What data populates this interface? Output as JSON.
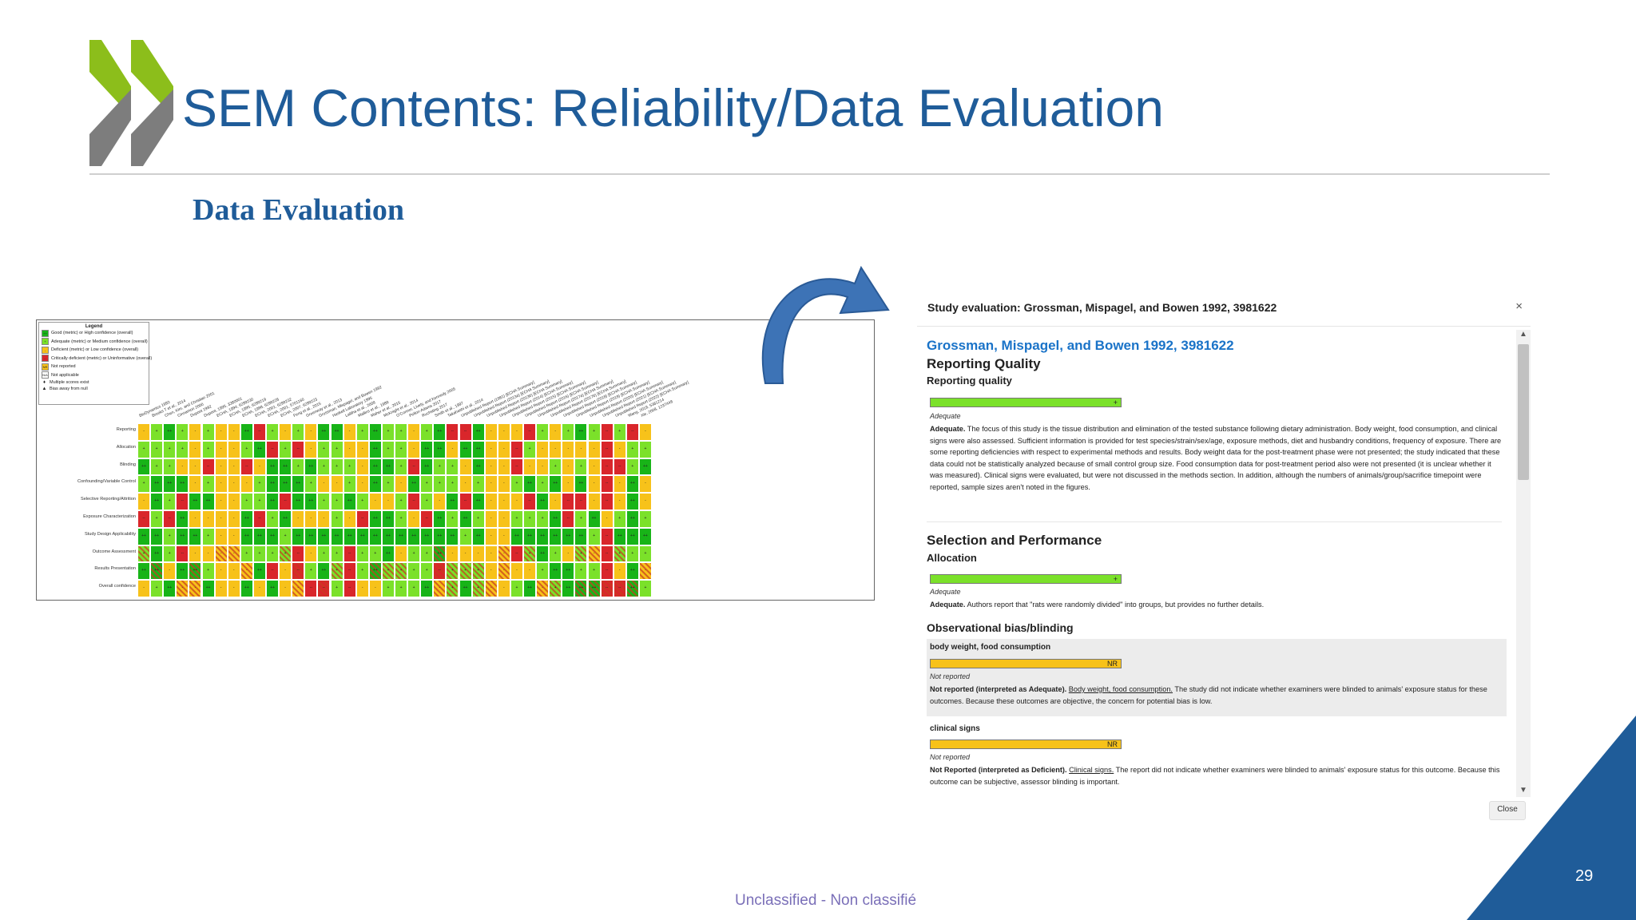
{
  "slide": {
    "title": "SEM Contents: Reliability/Data Evaluation",
    "section_heading": "Data Evaluation",
    "page_number": "29",
    "classification": "Unclassified - Non classifié"
  },
  "colors": {
    "title_blue": "#1f5c99",
    "logo_green": "#8cbe1b",
    "logo_gray": "#7d7d7d",
    "corner_blue": "#1f5c99",
    "link_blue": "#1a73c8",
    "good": "#18b418",
    "adequate": "#7be12a",
    "deficient": "#f7c21a",
    "critically_deficient": "#d9262b"
  },
  "heatmap": {
    "legend": {
      "title": "Legend",
      "items": [
        {
          "symbol": "++",
          "color": "#18b418",
          "label": "Good (metric) or High confidence (overall)"
        },
        {
          "symbol": "+",
          "color": "#7be12a",
          "label": "Adequate (metric) or Medium confidence (overall)"
        },
        {
          "symbol": "-",
          "color": "#f7c21a",
          "label": "Deficient (metric) or Low confidence (overall)"
        },
        {
          "symbol": "--",
          "color": "#d9262b",
          "label": "Critically deficient (metric) or Uninformative (overall)"
        },
        {
          "symbol": "NR",
          "color": "#f7c21a",
          "label": "Not reported"
        },
        {
          "symbol": "N/A",
          "color": "#ffffff",
          "label": "Not applicable"
        }
      ],
      "notes": [
        "Multiple scores exist",
        "Bias away from null"
      ]
    },
    "rows": [
      "Reporting",
      "Allocation",
      "Blinding",
      "Confounding/Variable Control",
      "Selective Reporting/Attrition",
      "Exposure Characterization",
      "Study Design Applicability",
      "Outcome Assessment",
      "Results Presentation",
      "Overall confidence"
    ],
    "columns": [
      "BioDynamics 1993",
      "Brooks T et al., 2014",
      "Chen, Kim, and Christian 2001",
      "Cinnamon 2000",
      "Dupont 1992",
      "Dupont, 1995, 3380001",
      "ECHA, 1994, 6299230",
      "ECHA, 1995, 6299219",
      "ECHA, 1998, 6299228",
      "ECHA, 2001, 6299232",
      "ECHA, 2001, 5701160",
      "ECHA, 2007, 6299223",
      "Feng et al., 2015",
      "Greenway et al., 2013",
      "Grossman, Mispagel, and Bowen 1992",
      "Haskell Laboratory 1995",
      "Lalitha et al., 2008",
      "Mallins et al., 1988",
      "Maher et al., 2015",
      "McKnight et al., 2014",
      "O'Connor, Lively, and Kennedy 2005",
      "Pellon-Adams 2017",
      "Ruchsting 2017",
      "Smith et al., 1997",
      "Takahashi et al., 2014",
      "Unpublished Report (1981) [ECHA Summary]",
      "Unpublished Report (2013a) [ECHA Summary]",
      "Unpublished Report (2013b) [ECHA Summary]",
      "Unpublished Report (2014) [ECHA Summary]",
      "Unpublished Report (2015) [ECHA Summary]",
      "Unpublished Report (2016) [ECHA Summary]",
      "Unpublished Report (2017a) [ECHA Summary]",
      "Unpublished Report (2017b) [ECHA Summary]",
      "Unpublished Report (2018) [ECHA Summary]",
      "Unpublished Report (2019) [ECHA Summary]",
      "Unpublished Report (2020) [ECHA Summary]",
      "Unpublished Report (2021) [ECHA Summary]",
      "Unpublished Report (2022) [ECHA Summary]",
      "Wang, 2019, 5381214",
      "Xie, 2008, 1237448"
    ]
  },
  "modal": {
    "title": "Study evaluation: Grossman, Mispagel, and Bowen 1992, 3981622",
    "close_x": "×",
    "study_link": "Grossman, Mispagel, and Bowen 1992, 3981622",
    "reporting_quality": {
      "heading": "Reporting Quality",
      "metric": "Reporting quality",
      "bar_symbol": "+",
      "rating": "Adequate",
      "paragraph_lead": "Adequate.",
      "paragraph": " The focus of this study is the tissue distribution and elimination of the tested substance following dietary administration. Body weight, food consumption, and clinical signs were also assessed. Sufficient information is provided for test species/strain/sex/age, exposure methods, diet and husbandry conditions, frequency of exposure. There are some reporting deficiencies with respect to experimental methods and results. Body weight data for the post-treatment phase were not presented; the study indicated that these data could not be statistically analyzed because of small control group size. Food consumption data for post-treatment period also were not presented (it is unclear whether it was measured). Clinical signs were evaluated, but were not discussed in the methods section. In addition, although the numbers of animals/group/sacrifice timepoint were reported, sample sizes aren't noted in the figures."
    },
    "selection_performance": {
      "heading": "Selection and Performance",
      "metric": "Allocation",
      "bar_symbol": "+",
      "rating": "Adequate",
      "paragraph_lead": "Adequate.",
      "paragraph": " Authors report that \"rats were randomly divided\" into groups, but provides no further details."
    },
    "blinding": {
      "heading": "Observational bias/blinding",
      "items": [
        {
          "outcome": "body weight, food consumption",
          "bar_symbol": "NR",
          "rating": "Not reported",
          "lead": "Not reported (interpreted as Adequate).",
          "underlined": "Body weight, food consumption.",
          "text": " The study did not indicate whether examiners were blinded to animals' exposure status for these outcomes. Because these outcomes are objective, the concern for potential bias is low."
        },
        {
          "outcome": "clinical signs",
          "bar_symbol": "NR",
          "rating": "Not reported",
          "lead": "Not Reported (interpreted as Deficient).",
          "underlined": "Clinical signs.",
          "text": " The report did not indicate whether examiners were blinded to animals' exposure status for this outcome. Because this outcome can be subjective, assessor blinding is important."
        }
      ]
    },
    "close_button": "Close"
  }
}
